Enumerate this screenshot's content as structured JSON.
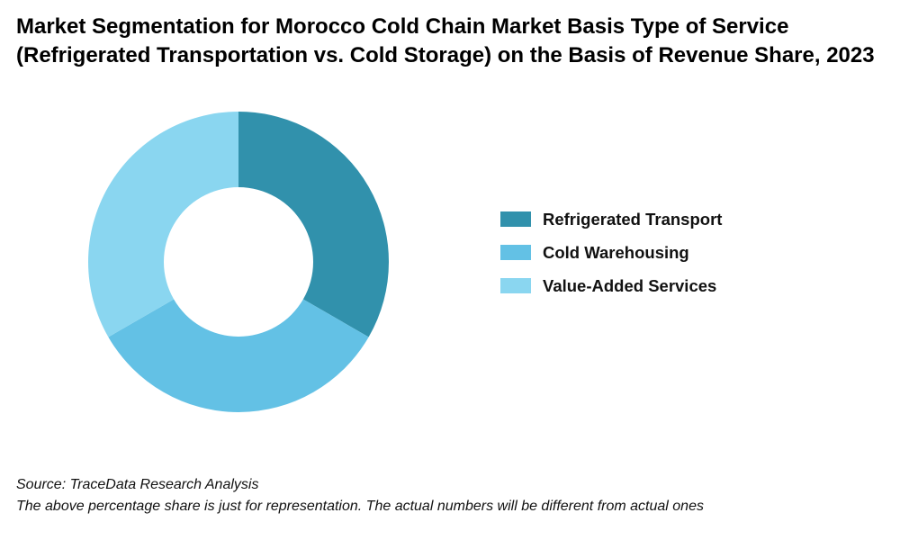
{
  "chart_data": {
    "type": "pie",
    "variant": "donut",
    "title": "Market Segmentation for Morocco Cold Chain Market Basis Type of Service (Refrigerated Transportation vs. Cold Storage) on the Basis of Revenue Share, 2023",
    "categories": [
      "Refrigerated Transport",
      "Cold Warehousing",
      "Value-Added Services"
    ],
    "values": [
      33.3,
      33.3,
      33.3
    ],
    "colors": [
      "#3191AC",
      "#63C1E5",
      "#8AD6F0"
    ],
    "legend_position": "right",
    "data_labels_shown": false
  },
  "footer": {
    "source": "Source: TraceData Research Analysis",
    "note": "The above percentage share is just for representation. The actual numbers will be different from actual ones"
  }
}
